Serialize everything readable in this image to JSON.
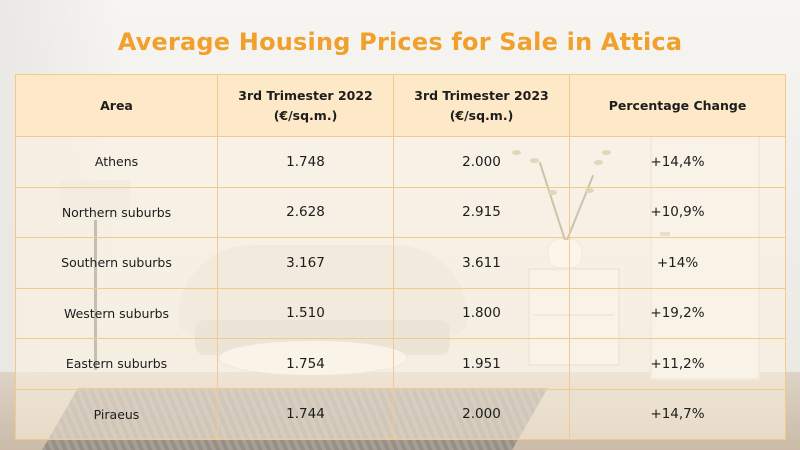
{
  "title": "Average Housing Prices for Sale in Attica",
  "table": {
    "headers": [
      {
        "line1": "Area",
        "line2": ""
      },
      {
        "line1": "3rd Trimester 2022",
        "line2": "(€/sq.m.)"
      },
      {
        "line1": "3rd Trimester 2023",
        "line2": "(€/sq.m.)"
      },
      {
        "line1": "Percentage Change",
        "line2": ""
      }
    ],
    "rows": [
      {
        "area": "Athens",
        "v2022": "1.748",
        "v2023": "2.000",
        "change": "+14,4%"
      },
      {
        "area": "Northern suburbs",
        "v2022": "2.628",
        "v2023": "2.915",
        "change": "+10,9%"
      },
      {
        "area": "Southern suburbs",
        "v2022": "3.167",
        "v2023": "3.611",
        "change": "+14%"
      },
      {
        "area": "Western suburbs",
        "v2022": "1.510",
        "v2023": "1.800",
        "change": "+19,2%"
      },
      {
        "area": "Eastern suburbs",
        "v2022": "1.754",
        "v2023": "1.951",
        "change": "+11,2%"
      },
      {
        "area": "Piraeus",
        "v2022": "1.744",
        "v2023": "2.000",
        "change": "+14,7%"
      }
    ]
  },
  "colors": {
    "title": "#f0a02b",
    "header_bg": "#fde9c7",
    "grid_lines": "#f3c98c"
  },
  "background": {
    "description_icon": "living-room-photo"
  }
}
